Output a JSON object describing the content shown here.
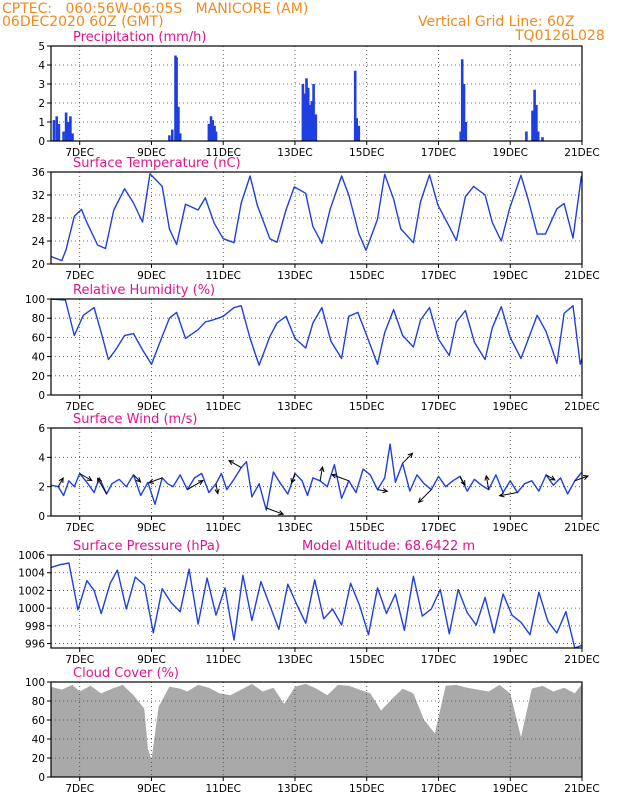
{
  "header": {
    "line1_left": "CPTEC:   060:56W-06:05S   MANICORE (AM)",
    "line2_left": "06DEC2020 60Z (GMT)",
    "line2_right": "Vertical Grid Line: 60Z",
    "line3_right": "TQ0126L028"
  },
  "colors": {
    "header": "#f08a1c",
    "panel_title": "#e0148c",
    "series": "#1f3fe0",
    "cloud_fill": "#a9a9a9",
    "wind_arrow": "#000000"
  },
  "chart_data": [
    {
      "type": "bar",
      "title": "Precipitation (mm/h)",
      "ylim": [
        0,
        5
      ],
      "yticks": [
        0,
        1,
        2,
        3,
        4,
        5
      ],
      "xlim_days": [
        6.2,
        21
      ],
      "xticks": [
        "7DEC",
        "9DEC",
        "11DEC",
        "13DEC",
        "15DEC",
        "17DEC",
        "19DEC",
        "21DEC"
      ],
      "grid": true,
      "events": [
        {
          "day": 6.28,
          "value": 1.1
        },
        {
          "day": 6.36,
          "value": 1.3
        },
        {
          "day": 6.42,
          "value": 0.9
        },
        {
          "day": 6.55,
          "value": 0.5
        },
        {
          "day": 6.62,
          "value": 1.5
        },
        {
          "day": 6.68,
          "value": 1.0
        },
        {
          "day": 6.74,
          "value": 1.3
        },
        {
          "day": 6.8,
          "value": 0.4
        },
        {
          "day": 9.5,
          "value": 0.3
        },
        {
          "day": 9.58,
          "value": 0.6
        },
        {
          "day": 9.67,
          "value": 4.5
        },
        {
          "day": 9.7,
          "value": 4.4
        },
        {
          "day": 9.75,
          "value": 1.8
        },
        {
          "day": 9.8,
          "value": 0.4
        },
        {
          "day": 10.6,
          "value": 0.9
        },
        {
          "day": 10.66,
          "value": 1.3
        },
        {
          "day": 10.71,
          "value": 1.1
        },
        {
          "day": 10.76,
          "value": 0.8
        },
        {
          "day": 10.8,
          "value": 0.5
        },
        {
          "day": 13.22,
          "value": 3.0
        },
        {
          "day": 13.27,
          "value": 2.5
        },
        {
          "day": 13.32,
          "value": 3.3
        },
        {
          "day": 13.37,
          "value": 2.8
        },
        {
          "day": 13.42,
          "value": 1.9
        },
        {
          "day": 13.47,
          "value": 2.1
        },
        {
          "day": 13.52,
          "value": 3.0
        },
        {
          "day": 13.58,
          "value": 1.4
        },
        {
          "day": 14.68,
          "value": 3.7
        },
        {
          "day": 14.72,
          "value": 1.2
        },
        {
          "day": 14.78,
          "value": 0.8
        },
        {
          "day": 17.62,
          "value": 0.5
        },
        {
          "day": 17.66,
          "value": 4.3
        },
        {
          "day": 17.71,
          "value": 3.0
        },
        {
          "day": 17.76,
          "value": 1.0
        },
        {
          "day": 19.45,
          "value": 0.5
        },
        {
          "day": 19.62,
          "value": 1.6
        },
        {
          "day": 19.68,
          "value": 2.7
        },
        {
          "day": 19.73,
          "value": 1.9
        },
        {
          "day": 19.78,
          "value": 0.5
        },
        {
          "day": 19.9,
          "value": 0.2
        }
      ]
    },
    {
      "type": "line",
      "title": "Surface Temperature (nC)",
      "ylim": [
        20,
        36
      ],
      "yticks": [
        20,
        24,
        28,
        32,
        36
      ],
      "xlim_days": [
        6.2,
        21
      ],
      "xticks": [
        "7DEC",
        "9DEC",
        "11DEC",
        "13DEC",
        "15DEC",
        "17DEC",
        "19DEC",
        "21DEC"
      ],
      "grid": true,
      "x": [
        6.2,
        6.5,
        6.62,
        6.85,
        7.05,
        7.2,
        7.5,
        7.72,
        7.95,
        8.25,
        8.5,
        8.75,
        8.96,
        9.3,
        9.5,
        9.7,
        9.95,
        10.3,
        10.5,
        10.75,
        11.0,
        11.3,
        11.5,
        11.75,
        11.95,
        12.3,
        12.5,
        12.75,
        12.98,
        13.3,
        13.5,
        13.75,
        13.98,
        14.3,
        14.5,
        14.78,
        14.98,
        15.3,
        15.5,
        15.75,
        15.95,
        16.3,
        16.5,
        16.75,
        16.98,
        17.3,
        17.5,
        17.75,
        17.98,
        18.3,
        18.5,
        18.75,
        18.98,
        19.3,
        19.5,
        19.75,
        19.98,
        20.3,
        20.5,
        20.75,
        20.98,
        21.0
      ],
      "y": [
        21.3,
        20.6,
        22.5,
        28.3,
        29.5,
        27.2,
        23.3,
        22.7,
        29.4,
        33.1,
        30.6,
        27.3,
        35.7,
        33.5,
        26.1,
        23.4,
        30.4,
        29.4,
        31.5,
        27.1,
        24.4,
        23.7,
        30.6,
        35.3,
        30.2,
        24.4,
        23.8,
        29.4,
        33.4,
        32.3,
        26.5,
        23.6,
        29.5,
        35.3,
        32.0,
        25.3,
        22.4,
        27.8,
        35.6,
        31.3,
        26.1,
        23.7,
        30.8,
        35.5,
        30.3,
        26.5,
        24.1,
        31.7,
        33.5,
        32.0,
        27.2,
        24.0,
        29.6,
        35.4,
        31.2,
        25.2,
        25.2,
        29.6,
        30.5,
        24.5,
        35.2,
        34.5
      ]
    },
    {
      "type": "line",
      "title": "Relative Humidity (%)",
      "ylim": [
        0,
        100
      ],
      "yticks": [
        0,
        20,
        40,
        60,
        80,
        100
      ],
      "xlim_days": [
        6.2,
        21
      ],
      "xticks": [
        "7DEC",
        "9DEC",
        "11DEC",
        "13DEC",
        "15DEC",
        "17DEC",
        "19DEC",
        "21DEC"
      ],
      "grid": true,
      "x": [
        6.2,
        6.6,
        6.85,
        7.1,
        7.4,
        7.6,
        7.8,
        8.0,
        8.25,
        8.5,
        8.75,
        9.0,
        9.3,
        9.5,
        9.7,
        9.95,
        10.3,
        10.5,
        10.7,
        11.0,
        11.3,
        11.5,
        11.75,
        12.0,
        12.3,
        12.5,
        12.75,
        13.0,
        13.3,
        13.5,
        13.75,
        14.0,
        14.3,
        14.5,
        14.75,
        15.0,
        15.3,
        15.5,
        15.75,
        16.0,
        16.3,
        16.5,
        16.75,
        17.0,
        17.3,
        17.5,
        17.75,
        18.0,
        18.3,
        18.5,
        18.75,
        19.0,
        19.3,
        19.5,
        19.75,
        20.0,
        20.3,
        20.5,
        20.75,
        20.95,
        21.0
      ],
      "y": [
        100,
        99,
        62,
        83,
        91,
        65,
        37,
        47,
        62,
        64,
        47,
        32,
        61,
        80,
        86,
        59,
        68,
        76,
        78,
        82,
        91,
        93,
        59,
        31,
        61,
        75,
        82,
        59,
        49,
        75,
        91,
        56,
        38,
        82,
        86,
        62,
        32,
        65,
        89,
        62,
        50,
        78,
        91,
        58,
        41,
        76,
        88,
        55,
        37,
        70,
        92,
        60,
        38,
        58,
        83,
        66,
        33,
        85,
        93,
        32,
        38
      ]
    },
    {
      "type": "line",
      "title": "Surface Wind (m/s)",
      "ylim": [
        0,
        6
      ],
      "yticks": [
        0,
        2,
        4,
        6
      ],
      "xlim_days": [
        6.2,
        21
      ],
      "xticks": [
        "7DEC",
        "9DEC",
        "11DEC",
        "13DEC",
        "15DEC",
        "17DEC",
        "19DEC",
        "21DEC"
      ],
      "grid": true,
      "vector_arrows": true,
      "x": [
        6.2,
        6.4,
        6.55,
        6.7,
        6.85,
        7.0,
        7.2,
        7.4,
        7.55,
        7.75,
        7.9,
        8.1,
        8.3,
        8.5,
        8.7,
        8.9,
        9.1,
        9.3,
        9.45,
        9.6,
        9.8,
        10.0,
        10.2,
        10.4,
        10.6,
        10.8,
        10.95,
        11.1,
        11.3,
        11.5,
        11.65,
        11.8,
        12.0,
        12.2,
        12.4,
        12.6,
        12.8,
        13.0,
        13.2,
        13.35,
        13.5,
        13.7,
        13.9,
        14.1,
        14.3,
        14.5,
        14.7,
        14.9,
        15.1,
        15.3,
        15.5,
        15.65,
        15.8,
        16.0,
        16.2,
        16.4,
        16.6,
        16.8,
        17.0,
        17.2,
        17.4,
        17.6,
        17.8,
        18.0,
        18.2,
        18.4,
        18.6,
        18.8,
        19.0,
        19.2,
        19.4,
        19.6,
        19.8,
        20.0,
        20.2,
        20.4,
        20.6,
        20.8,
        21.0
      ],
      "y": [
        2.1,
        2.0,
        1.4,
        2.4,
        2.0,
        2.9,
        2.3,
        1.6,
        2.6,
        1.5,
        2.2,
        2.5,
        2.0,
        2.8,
        1.4,
        2.3,
        0.8,
        2.6,
        2.2,
        2.0,
        2.8,
        1.8,
        2.6,
        2.9,
        1.6,
        2.2,
        2.9,
        1.8,
        2.5,
        3.3,
        3.7,
        1.3,
        2.2,
        0.4,
        3.0,
        2.2,
        1.5,
        2.9,
        2.4,
        1.4,
        2.6,
        2.4,
        2.0,
        3.5,
        1.2,
        2.4,
        1.6,
        3.2,
        2.8,
        1.8,
        2.6,
        4.9,
        2.3,
        3.6,
        1.7,
        2.8,
        2.2,
        1.8,
        2.7,
        2.0,
        2.4,
        2.7,
        1.7,
        2.5,
        2.1,
        1.8,
        2.8,
        1.6,
        2.4,
        1.6,
        2.2,
        2.4,
        1.7,
        2.8,
        2.1,
        2.6,
        1.5,
        2.4,
        3.0
      ]
    },
    {
      "type": "line",
      "title": "Surface Pressure (hPa)",
      "annotation": "Model Altitude: 68.6422 m",
      "ylim": [
        995.5,
        1006
      ],
      "yticks": [
        996,
        998,
        1000,
        1002,
        1004,
        1006
      ],
      "xlim_days": [
        6.2,
        21
      ],
      "xticks": [
        "7DEC",
        "9DEC",
        "11DEC",
        "13DEC",
        "15DEC",
        "17DEC",
        "19DEC",
        "21DEC"
      ],
      "grid": true,
      "x": [
        6.2,
        6.45,
        6.7,
        6.95,
        7.2,
        7.4,
        7.6,
        7.85,
        8.05,
        8.3,
        8.55,
        8.8,
        9.05,
        9.3,
        9.55,
        9.8,
        10.05,
        10.3,
        10.55,
        10.8,
        11.05,
        11.3,
        11.55,
        11.8,
        12.05,
        12.3,
        12.55,
        12.8,
        13.05,
        13.3,
        13.55,
        13.8,
        14.05,
        14.3,
        14.55,
        14.8,
        15.05,
        15.3,
        15.55,
        15.8,
        16.05,
        16.3,
        16.55,
        16.8,
        17.05,
        17.3,
        17.55,
        17.8,
        18.05,
        18.3,
        18.55,
        18.8,
        19.05,
        19.3,
        19.55,
        19.8,
        20.05,
        20.3,
        20.55,
        20.8,
        21.0
      ],
      "y": [
        1004.6,
        1004.9,
        1005.1,
        999.8,
        1003.1,
        1002.0,
        999.4,
        1002.8,
        1004.3,
        999.9,
        1003.5,
        1002.6,
        997.2,
        1002.2,
        1000.6,
        999.6,
        1004.4,
        998.2,
        1003.4,
        999.2,
        1002.3,
        996.4,
        1003.7,
        998.6,
        1003.0,
        1000.3,
        997.6,
        1002.7,
        1000.4,
        998.3,
        1003.2,
        998.8,
        999.9,
        998.1,
        1002.8,
        1000.3,
        997.0,
        1002.3,
        999.4,
        1001.6,
        997.5,
        1003.6,
        999.1,
        999.9,
        1002.1,
        997.1,
        1002.1,
        999.5,
        998.1,
        1001.2,
        997.2,
        1001.6,
        999.2,
        998.4,
        997.0,
        1001.8,
        998.5,
        997.2,
        999.6,
        995.4,
        995.8
      ]
    },
    {
      "type": "area",
      "title": "Cloud Cover (%)",
      "ylim": [
        0,
        100
      ],
      "yticks": [
        0,
        20,
        40,
        60,
        80,
        100
      ],
      "xlim_days": [
        6.2,
        21
      ],
      "xticks": [
        "7DEC",
        "9DEC",
        "11DEC",
        "13DEC",
        "15DEC",
        "17DEC",
        "19DEC",
        "21DEC"
      ],
      "grid": true,
      "x": [
        6.2,
        6.5,
        6.8,
        7.0,
        7.3,
        7.6,
        7.9,
        8.2,
        8.5,
        8.8,
        8.9,
        9.0,
        9.2,
        9.5,
        9.8,
        10.0,
        10.3,
        10.6,
        10.9,
        11.2,
        11.5,
        11.8,
        12.1,
        12.4,
        12.7,
        13.0,
        13.3,
        13.6,
        13.9,
        14.2,
        14.5,
        14.8,
        15.1,
        15.4,
        15.7,
        16.0,
        16.3,
        16.6,
        16.9,
        17.2,
        17.5,
        17.8,
        18.1,
        18.4,
        18.7,
        19.0,
        19.3,
        19.6,
        19.9,
        20.2,
        20.5,
        20.8,
        21.0
      ],
      "y": [
        95,
        92,
        97,
        90,
        96,
        88,
        93,
        97,
        86,
        72,
        30,
        18,
        74,
        95,
        93,
        90,
        97,
        94,
        88,
        86,
        92,
        98,
        90,
        94,
        77,
        95,
        98,
        93,
        86,
        97,
        96,
        92,
        88,
        70,
        82,
        93,
        88,
        60,
        46,
        96,
        97,
        94,
        92,
        90,
        97,
        88,
        42,
        93,
        96,
        90,
        94,
        88,
        98
      ]
    }
  ]
}
